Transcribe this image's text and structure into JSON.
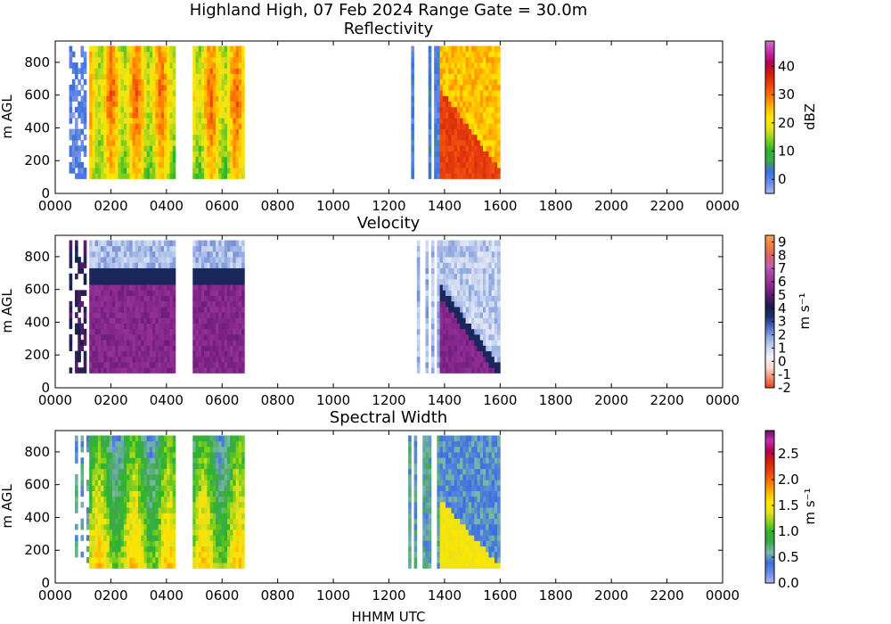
{
  "figure_title": "Highland High, 07 Feb 2024 Range Gate = 30.0m",
  "xlabel": "HHMM UTC",
  "chart_data": [
    {
      "type": "heatmap",
      "title": "Reflectivity",
      "ylabel": "m AGL",
      "xlabel": "",
      "x_ticks": [
        "0000",
        "0200",
        "0400",
        "0600",
        "0800",
        "1000",
        "1200",
        "1400",
        "1600",
        "1800",
        "2000",
        "2200",
        "0000"
      ],
      "y_ticks": [
        0,
        200,
        400,
        600,
        800
      ],
      "ylim": [
        0,
        930
      ],
      "colorbar": {
        "label": "dBZ",
        "range": [
          -5,
          49
        ],
        "ticks": [
          0,
          10,
          20,
          30,
          40
        ],
        "colors": [
          "#a8b8f0",
          "#6a8ce8",
          "#3b6fe0",
          "#3ea84f",
          "#2bb52b",
          "#8ad11a",
          "#e9e21a",
          "#ffe600",
          "#ffb000",
          "#ff7300",
          "#e84010",
          "#d41f00",
          "#b5005a",
          "#c030a8",
          "#d070d0"
        ]
      },
      "data_extent_hhmm": [
        "0030",
        "1600"
      ],
      "data_bottom_m": 90,
      "data_top_m": 900
    },
    {
      "type": "heatmap",
      "title": "Velocity",
      "ylabel": "m AGL",
      "xlabel": "",
      "x_ticks": [
        "0000",
        "0200",
        "0400",
        "0600",
        "0800",
        "1000",
        "1200",
        "1400",
        "1600",
        "1800",
        "2000",
        "2200",
        "0000"
      ],
      "y_ticks": [
        0,
        200,
        400,
        600,
        800
      ],
      "ylim": [
        0,
        930
      ],
      "colorbar": {
        "label": "m s⁻¹",
        "range": [
          -2,
          9.5
        ],
        "ticks": [
          -2,
          -1,
          0,
          1,
          2,
          3,
          4,
          5,
          6,
          7,
          8,
          9
        ],
        "colors": [
          "#e04020",
          "#f09070",
          "#fad8d0",
          "#f4f4f8",
          "#c8d4f0",
          "#8fa8e0",
          "#4a68c0",
          "#1e3070",
          "#151e48",
          "#5a1a6a",
          "#8a2890",
          "#a040a0",
          "#c060b0",
          "#e06060",
          "#f08040",
          "#f4a060"
        ]
      },
      "data_extent_hhmm": [
        "0030",
        "1600"
      ],
      "data_bottom_m": 90,
      "data_top_m": 900
    },
    {
      "type": "heatmap",
      "title": "Spectral Width",
      "ylabel": "m AGL",
      "xlabel": "HHMM UTC",
      "x_ticks": [
        "0000",
        "0200",
        "0400",
        "0600",
        "0800",
        "1000",
        "1200",
        "1400",
        "1600",
        "1800",
        "2000",
        "2200",
        "0000"
      ],
      "y_ticks": [
        0,
        200,
        400,
        600,
        800
      ],
      "ylim": [
        0,
        930
      ],
      "colorbar": {
        "label": "m s⁻¹",
        "range": [
          0,
          2.95
        ],
        "ticks": [
          "0.0",
          "0.5",
          "1.0",
          "1.5",
          "2.0",
          "2.5"
        ],
        "colors": [
          "#a8b8f0",
          "#6a8ce8",
          "#3b6fe0",
          "#7ab8a8",
          "#3ea84f",
          "#2bb52b",
          "#8ad11a",
          "#e9e21a",
          "#ffe600",
          "#ffb000",
          "#ff7300",
          "#e84010",
          "#d41f00",
          "#b5005a",
          "#c030a8",
          "#6a1060"
        ]
      },
      "data_extent_hhmm": [
        "0030",
        "1600"
      ],
      "data_bottom_m": 90,
      "data_top_m": 900
    }
  ]
}
